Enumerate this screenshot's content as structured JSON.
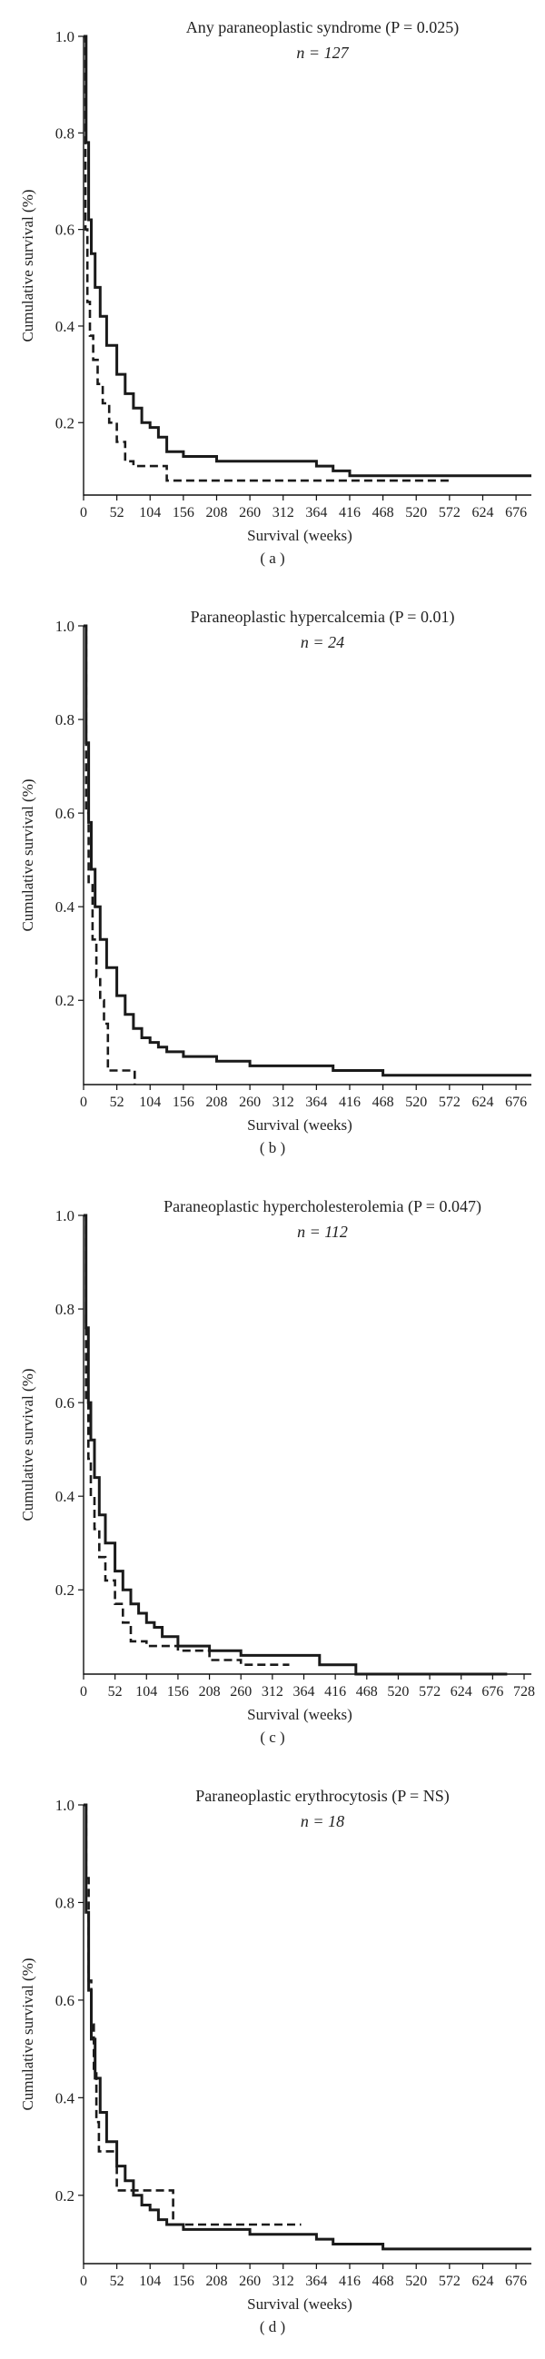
{
  "chart_data": [
    {
      "type": "line",
      "panel_label": "( a )",
      "title": "Any paraneoplastic syndrome (P = 0.025)",
      "n_label": "n = 127",
      "xlabel": "Survival (weeks)",
      "ylabel": "Cumulative survival (%)",
      "xlim": [
        0,
        700
      ],
      "ylim": [
        0.05,
        1.0
      ],
      "xticks": [
        0,
        52,
        104,
        156,
        208,
        260,
        312,
        364,
        416,
        468,
        520,
        572,
        624,
        676
      ],
      "yticks": [
        0.2,
        0.4,
        0.6,
        0.8,
        1.0
      ],
      "ytick_labels": [
        "0.2",
        "0.4",
        "0.6",
        "0.8",
        "1.0"
      ],
      "series": [
        {
          "style": "solid",
          "x": [
            0,
            4,
            8,
            12,
            18,
            26,
            36,
            52,
            65,
            78,
            91,
            104,
            117,
            130,
            156,
            208,
            260,
            312,
            364,
            390,
            416,
            572,
            700
          ],
          "y": [
            1.0,
            0.78,
            0.62,
            0.55,
            0.48,
            0.42,
            0.36,
            0.3,
            0.26,
            0.23,
            0.2,
            0.19,
            0.17,
            0.14,
            0.13,
            0.12,
            0.12,
            0.12,
            0.11,
            0.1,
            0.09,
            0.09,
            0.09
          ]
        },
        {
          "style": "dashed",
          "x": [
            0,
            3,
            6,
            10,
            15,
            22,
            30,
            40,
            52,
            65,
            78,
            104,
            130,
            156,
            572
          ],
          "y": [
            1.0,
            0.6,
            0.45,
            0.38,
            0.33,
            0.28,
            0.24,
            0.2,
            0.16,
            0.12,
            0.11,
            0.11,
            0.08,
            0.08,
            0.08
          ]
        }
      ]
    },
    {
      "type": "line",
      "panel_label": "( b )",
      "title": "Paraneoplastic hypercalcemia (P = 0.01)",
      "n_label": "n = 24",
      "xlabel": "Survival (weeks)",
      "ylabel": "Cumulative survival (%)",
      "xlim": [
        0,
        700
      ],
      "ylim": [
        0.02,
        1.0
      ],
      "xticks": [
        0,
        52,
        104,
        156,
        208,
        260,
        312,
        364,
        416,
        468,
        520,
        572,
        624,
        676
      ],
      "yticks": [
        0.2,
        0.4,
        0.6,
        0.8,
        1.0
      ],
      "ytick_labels": [
        "0.2",
        "0.4",
        "0.6",
        "0.8",
        "1.0"
      ],
      "series": [
        {
          "style": "solid",
          "x": [
            0,
            4,
            8,
            12,
            18,
            26,
            36,
            52,
            65,
            78,
            91,
            104,
            117,
            130,
            156,
            208,
            260,
            312,
            364,
            390,
            416,
            468,
            700
          ],
          "y": [
            1.0,
            0.75,
            0.58,
            0.48,
            0.4,
            0.33,
            0.27,
            0.21,
            0.17,
            0.14,
            0.12,
            0.11,
            0.1,
            0.09,
            0.08,
            0.07,
            0.06,
            0.06,
            0.06,
            0.05,
            0.05,
            0.04,
            0.04
          ]
        },
        {
          "style": "dashed",
          "x": [
            0,
            4,
            8,
            14,
            20,
            26,
            32,
            38,
            50,
            65,
            78,
            80
          ],
          "y": [
            1.0,
            0.6,
            0.45,
            0.33,
            0.25,
            0.2,
            0.15,
            0.05,
            0.05,
            0.05,
            0.05,
            0.02
          ]
        }
      ]
    },
    {
      "type": "line",
      "panel_label": "( c )",
      "title": "Paraneoplastic hypercholesterolemia (P = 0.047)",
      "n_label": "n = 112",
      "xlabel": "Survival (weeks)",
      "ylabel": "Cumulative survival (%)",
      "xlim": [
        0,
        740
      ],
      "ylim": [
        0.02,
        1.0
      ],
      "xticks": [
        0,
        52,
        104,
        156,
        208,
        260,
        312,
        364,
        416,
        468,
        520,
        572,
        624,
        676,
        728
      ],
      "yticks": [
        0.2,
        0.4,
        0.6,
        0.8,
        1.0
      ],
      "ytick_labels": [
        "0.2",
        "0.4",
        "0.6",
        "0.8",
        "1.0"
      ],
      "series": [
        {
          "style": "solid",
          "x": [
            0,
            4,
            8,
            12,
            18,
            26,
            36,
            52,
            65,
            78,
            91,
            104,
            117,
            130,
            156,
            208,
            260,
            312,
            364,
            390,
            416,
            450,
            700
          ],
          "y": [
            1.0,
            0.76,
            0.6,
            0.52,
            0.44,
            0.36,
            0.3,
            0.24,
            0.2,
            0.17,
            0.15,
            0.13,
            0.12,
            0.1,
            0.08,
            0.07,
            0.06,
            0.06,
            0.06,
            0.04,
            0.04,
            0.02,
            0.02
          ]
        },
        {
          "style": "dashed",
          "x": [
            0,
            4,
            8,
            12,
            18,
            26,
            36,
            52,
            65,
            78,
            104,
            156,
            208,
            260,
            340
          ],
          "y": [
            1.0,
            0.6,
            0.48,
            0.4,
            0.33,
            0.27,
            0.22,
            0.17,
            0.13,
            0.09,
            0.08,
            0.07,
            0.05,
            0.04,
            0.04
          ]
        }
      ]
    },
    {
      "type": "line",
      "panel_label": "( d )",
      "title": "Paraneoplastic erythrocytosis (P = NS)",
      "n_label": "n = 18",
      "xlabel": "Survival (weeks)",
      "ylabel": "Cumulative survival (%)",
      "xlim": [
        0,
        700
      ],
      "ylim": [
        0.06,
        1.0
      ],
      "xticks": [
        0,
        52,
        104,
        156,
        208,
        260,
        312,
        364,
        416,
        468,
        520,
        572,
        624,
        676
      ],
      "yticks": [
        0.2,
        0.4,
        0.6,
        0.8,
        1.0
      ],
      "ytick_labels": [
        "0.2",
        "0.4",
        "0.6",
        "0.8",
        "1.0"
      ],
      "series": [
        {
          "style": "solid",
          "x": [
            0,
            4,
            8,
            12,
            18,
            26,
            36,
            52,
            65,
            78,
            91,
            104,
            117,
            130,
            156,
            208,
            260,
            312,
            364,
            390,
            416,
            468,
            700
          ],
          "y": [
            1.0,
            0.78,
            0.62,
            0.52,
            0.44,
            0.37,
            0.31,
            0.26,
            0.23,
            0.2,
            0.18,
            0.17,
            0.15,
            0.14,
            0.13,
            0.13,
            0.12,
            0.12,
            0.11,
            0.1,
            0.1,
            0.09,
            0.09
          ]
        },
        {
          "style": "dashed",
          "x": [
            0,
            4,
            8,
            12,
            16,
            20,
            24,
            35,
            52,
            78,
            104,
            130,
            140,
            156,
            208,
            260,
            340
          ],
          "y": [
            1.0,
            0.85,
            0.64,
            0.55,
            0.45,
            0.35,
            0.29,
            0.29,
            0.21,
            0.21,
            0.21,
            0.21,
            0.14,
            0.14,
            0.14,
            0.14,
            0.14
          ]
        }
      ]
    }
  ]
}
